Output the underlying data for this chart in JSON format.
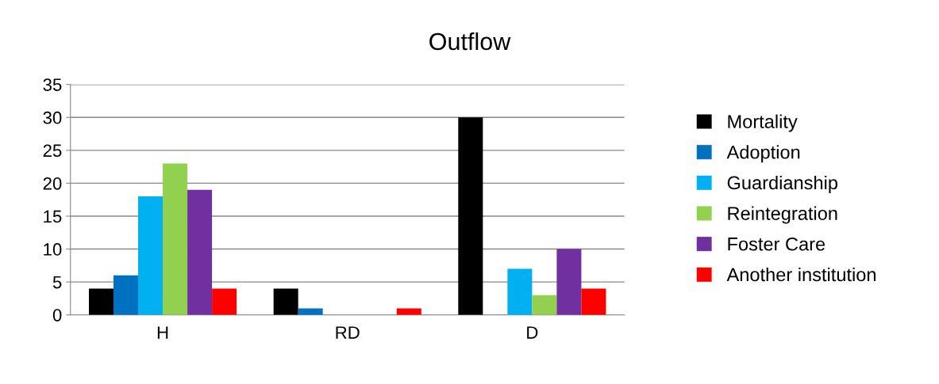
{
  "chart_data": {
    "type": "bar",
    "title": "Outflow",
    "categories": [
      "H",
      "RD",
      "D"
    ],
    "series": [
      {
        "name": "Mortality",
        "color": "#000000",
        "values": [
          4,
          4,
          30
        ]
      },
      {
        "name": "Adoption",
        "color": "#0070c0",
        "values": [
          6,
          1,
          0
        ]
      },
      {
        "name": "Guardianship",
        "color": "#00b0f0",
        "values": [
          18,
          0,
          7
        ]
      },
      {
        "name": "Reintegration",
        "color": "#92d050",
        "values": [
          23,
          0,
          3
        ]
      },
      {
        "name": "Foster Care",
        "color": "#7030a0",
        "values": [
          19,
          0,
          10
        ]
      },
      {
        "name": "Another institution",
        "color": "#ff0000",
        "values": [
          4,
          1,
          4
        ]
      }
    ],
    "ylim": [
      0,
      35
    ],
    "yticks": [
      0,
      5,
      10,
      15,
      20,
      25,
      30,
      35
    ],
    "grid": "y",
    "legend": "right"
  }
}
